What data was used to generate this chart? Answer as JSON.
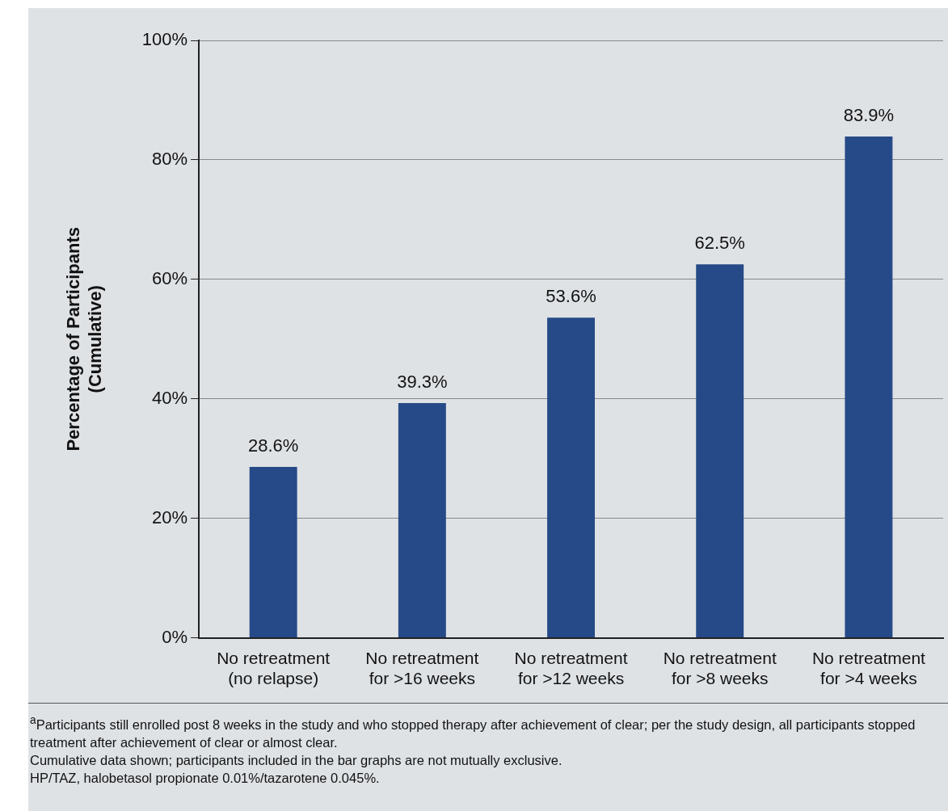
{
  "chart_data": {
    "type": "bar",
    "ylabel": "Percentage of Participants (Cumulative)",
    "categories": [
      "No retreatment (no relapse)",
      "No retreatment for >16 weeks",
      "No retreatment for >12 weeks",
      "No retreatment for >8 weeks",
      "No retreatment for >4 weeks"
    ],
    "values": [
      28.6,
      39.3,
      53.6,
      62.5,
      83.9
    ],
    "color": "#264a87",
    "value_labels": [
      "28.6%",
      "39.3%",
      "53.6%",
      "62.5%",
      "83.9%"
    ],
    "ylim": [
      0,
      100
    ],
    "yticks": [
      {
        "value": 0,
        "label": "0%"
      },
      {
        "value": 20,
        "label": "20%"
      },
      {
        "value": 40,
        "label": "40%"
      },
      {
        "value": 60,
        "label": "60%"
      },
      {
        "value": 80,
        "label": "80%"
      },
      {
        "value": 100,
        "label": "100%"
      }
    ],
    "grid": "y",
    "annotations": [
      "$^{a}$Participants still enrolled post 8 weeks in the study and who stopped therapy after achievement of clear; per the study design, all participants stopped treatment after achievement of clear or almost clear.",
      "Cumulative data shown; participants included in the bar graphs are not mutually exclusive.",
      "HP/TAZ, halobetasol propionate 0.01%/tazarotene 0.045%."
    ]
  }
}
